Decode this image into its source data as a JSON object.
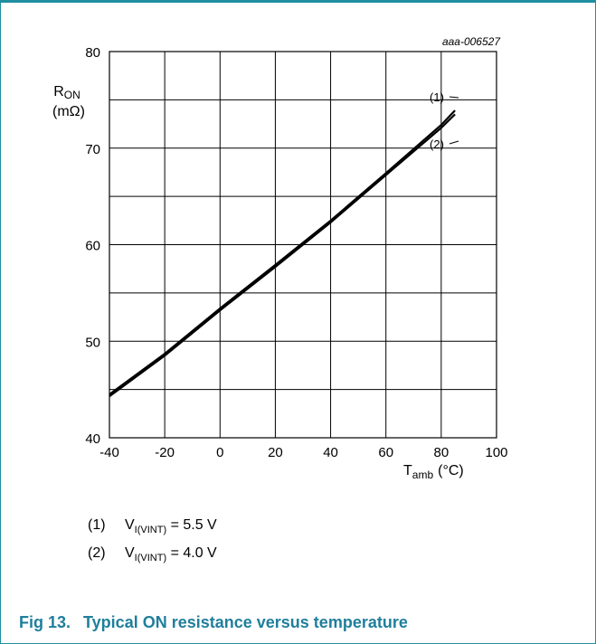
{
  "figure_id": "aaa-006527",
  "caption": {
    "label": "Fig 13.",
    "text": "Typical ON resistance versus temperature"
  },
  "legend_notes": [
    {
      "number": "(1)",
      "symbol": "V",
      "subscript": "I(VINT)",
      "value": "= 5.5 V"
    },
    {
      "number": "(2)",
      "symbol": "V",
      "subscript": "I(VINT)",
      "value": "= 4.0 V"
    }
  ],
  "chart_data": {
    "type": "line",
    "ylabel": {
      "main": "R",
      "sub": "ON",
      "unit": "(mΩ)"
    },
    "xlabel": {
      "main": "T",
      "sub": "amb",
      "unit": "(°C)"
    },
    "xlim": [
      -40,
      100
    ],
    "ylim": [
      40,
      80
    ],
    "x_ticks": [
      -40,
      -20,
      0,
      20,
      40,
      60,
      80,
      100
    ],
    "y_ticks": [
      40,
      50,
      60,
      70,
      80
    ],
    "grid": true,
    "series": [
      {
        "name": "(1)",
        "x": [
          -40,
          -20,
          0,
          20,
          40,
          60,
          80,
          85
        ],
        "y": [
          44.5,
          48.7,
          53.4,
          57.9,
          62.5,
          67.4,
          72.4,
          73.9
        ]
      },
      {
        "name": "(2)",
        "x": [
          -40,
          -20,
          0,
          20,
          40,
          60,
          80,
          85
        ],
        "y": [
          44.3,
          48.5,
          53.2,
          57.7,
          62.3,
          67.2,
          72.1,
          73.5
        ]
      }
    ]
  },
  "colors": {
    "accent": "#1f7f9c",
    "line": "#000000",
    "grid": "#000000"
  }
}
